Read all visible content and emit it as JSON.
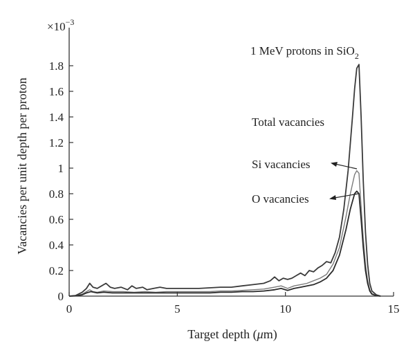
{
  "chart_data": {
    "type": "line",
    "title": "1 MeV protons in SiO",
    "title_subscript": "2",
    "xlabel_prefix": "Target depth (",
    "xlabel_unit": "μ",
    "xlabel_suffix": "m)",
    "ylabel": "Vacancies per unit depth per proton",
    "y_multiplier": "×10",
    "y_multiplier_exp": "−3",
    "xlim": [
      0,
      15
    ],
    "ylim": [
      0,
      1.9
    ],
    "x_ticks": [
      0,
      5,
      10,
      15
    ],
    "x_tick_labels": [
      "0",
      "5",
      "10",
      "15"
    ],
    "y_ticks": [
      0,
      0.2,
      0.4,
      0.6,
      0.8,
      1,
      1.2,
      1.4,
      1.6,
      1.8
    ],
    "y_tick_labels": [
      "0",
      "0.2",
      "0.4",
      "0.6",
      "0.8",
      "1",
      "1.2",
      "1.4",
      "1.6",
      "1.8"
    ],
    "grid": false,
    "annotations": [
      "Total vacancies",
      "Si vacancies",
      "O vacancies"
    ],
    "series": [
      {
        "color": "#3a3a3a",
        "x": [
          0,
          0.3,
          0.6,
          0.8,
          0.95,
          1.1,
          1.3,
          1.5,
          1.7,
          1.9,
          2.1,
          2.4,
          2.7,
          2.9,
          3.1,
          3.4,
          3.6,
          3.9,
          4.2,
          4.5,
          5,
          5.5,
          6,
          6.5,
          7,
          7.5,
          8,
          8.5,
          9,
          9.3,
          9.5,
          9.7,
          9.9,
          10.1,
          10.3,
          10.5,
          10.7,
          10.9,
          11.1,
          11.3,
          11.5,
          11.7,
          11.9,
          12.1,
          12.3,
          12.5,
          12.7,
          12.9,
          13.1,
          13.2,
          13.3,
          13.4,
          13.5,
          13.6,
          13.7,
          13.8,
          13.9,
          14.0,
          14.2,
          14.4
        ],
        "y": [
          0,
          0.005,
          0.03,
          0.06,
          0.1,
          0.07,
          0.06,
          0.08,
          0.1,
          0.07,
          0.06,
          0.07,
          0.05,
          0.08,
          0.06,
          0.07,
          0.05,
          0.06,
          0.07,
          0.06,
          0.06,
          0.06,
          0.06,
          0.065,
          0.07,
          0.07,
          0.08,
          0.09,
          0.1,
          0.12,
          0.15,
          0.12,
          0.14,
          0.13,
          0.14,
          0.16,
          0.18,
          0.16,
          0.2,
          0.19,
          0.22,
          0.24,
          0.27,
          0.26,
          0.34,
          0.46,
          0.68,
          0.98,
          1.4,
          1.62,
          1.78,
          1.81,
          1.4,
          0.9,
          0.5,
          0.25,
          0.1,
          0.04,
          0.01,
          0
        ]
      },
      {
        "color": "#7a7a7a",
        "x": [
          0,
          0.3,
          0.6,
          0.8,
          0.95,
          1.1,
          1.3,
          1.6,
          2,
          2.5,
          3,
          3.5,
          4,
          4.5,
          5,
          5.5,
          6,
          6.5,
          7,
          7.5,
          8,
          8.5,
          9,
          9.5,
          9.8,
          10.1,
          10.4,
          10.7,
          11,
          11.3,
          11.6,
          11.9,
          12.2,
          12.5,
          12.8,
          13.0,
          13.2,
          13.3,
          13.4,
          13.5,
          13.6,
          13.7,
          13.8,
          13.9,
          14.0,
          14.2,
          14.4
        ],
        "y": [
          0,
          0.003,
          0.015,
          0.035,
          0.05,
          0.035,
          0.03,
          0.04,
          0.035,
          0.035,
          0.03,
          0.035,
          0.03,
          0.035,
          0.035,
          0.035,
          0.035,
          0.035,
          0.04,
          0.04,
          0.045,
          0.05,
          0.055,
          0.07,
          0.08,
          0.06,
          0.08,
          0.09,
          0.1,
          0.12,
          0.14,
          0.17,
          0.25,
          0.38,
          0.62,
          0.8,
          0.95,
          0.98,
          0.96,
          0.7,
          0.45,
          0.25,
          0.12,
          0.05,
          0.02,
          0.005,
          0
        ]
      },
      {
        "color": "#2a2a2a",
        "x": [
          0,
          0.3,
          0.6,
          0.8,
          1,
          1.3,
          1.6,
          2,
          2.5,
          3,
          3.5,
          4,
          4.5,
          5,
          5.5,
          6,
          6.5,
          7,
          7.5,
          8,
          8.5,
          9,
          9.5,
          9.8,
          10.1,
          10.4,
          10.7,
          11,
          11.3,
          11.6,
          11.9,
          12.2,
          12.5,
          12.8,
          13.0,
          13.2,
          13.3,
          13.4,
          13.5,
          13.6,
          13.7,
          13.8,
          13.9,
          14.0,
          14.2,
          14.4
        ],
        "y": [
          0,
          0.002,
          0.01,
          0.025,
          0.035,
          0.025,
          0.03,
          0.025,
          0.025,
          0.025,
          0.025,
          0.025,
          0.025,
          0.025,
          0.025,
          0.025,
          0.025,
          0.03,
          0.03,
          0.035,
          0.035,
          0.04,
          0.05,
          0.06,
          0.045,
          0.06,
          0.07,
          0.08,
          0.09,
          0.11,
          0.14,
          0.2,
          0.32,
          0.52,
          0.68,
          0.8,
          0.82,
          0.8,
          0.6,
          0.38,
          0.2,
          0.1,
          0.04,
          0.015,
          0.004,
          0
        ]
      }
    ]
  }
}
